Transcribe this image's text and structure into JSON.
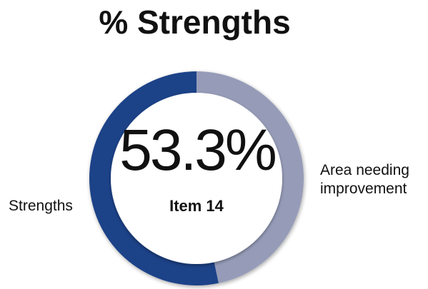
{
  "chart_data": {
    "type": "pie",
    "title": "% Strengths",
    "center_value": "53.3%",
    "center_label": "Item 14",
    "series": [
      {
        "name": "Strengths",
        "value": 53.3
      },
      {
        "name": "Area needing improvement",
        "value": 46.7
      }
    ],
    "labels": {
      "strengths": "Strengths",
      "area_line1": "Area needing",
      "area_line2": "improvement"
    },
    "colors": {
      "strengths": "#1d4388",
      "area": "#969cb8",
      "center": "#ffffff"
    }
  }
}
